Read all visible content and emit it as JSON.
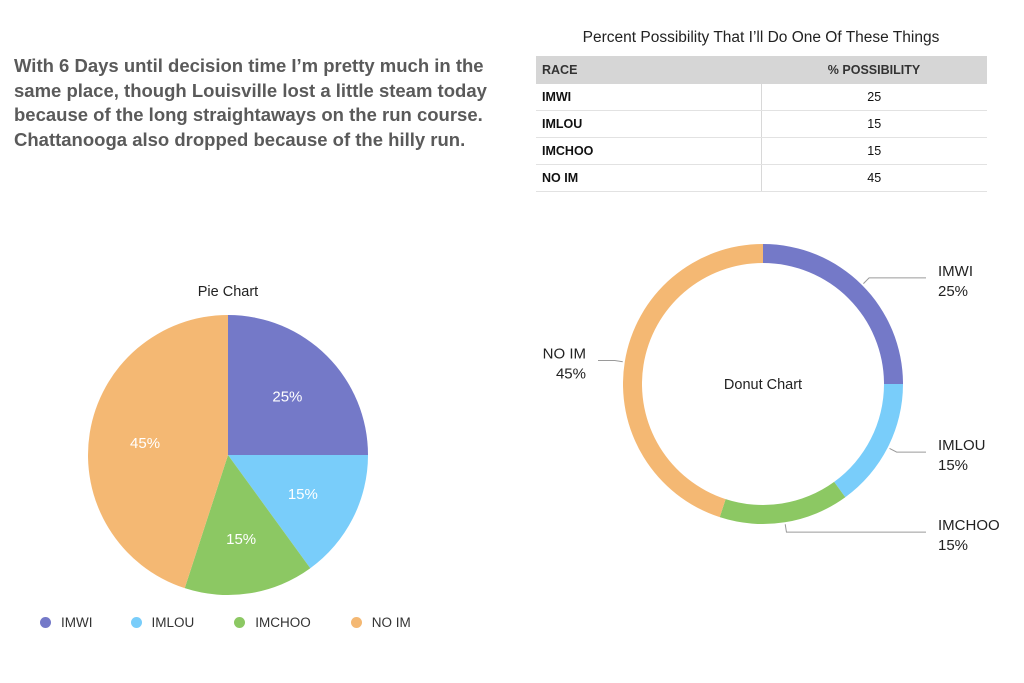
{
  "intro_text": "With 6 Days until decision time I’m pretty much in the same place, though Louisville lost a little steam today because of the long straightaways on the run course. Chattanooga also dropped because of the hilly run.",
  "table": {
    "title": "Percent Possibility That I’ll Do One Of These Things",
    "headers": [
      "RACE",
      "% POSSIBILITY"
    ],
    "rows": [
      {
        "race": "IMWI",
        "value": "25"
      },
      {
        "race": "IMLOU",
        "value": "15"
      },
      {
        "race": "IMCHOO",
        "value": "15"
      },
      {
        "race": "NO IM",
        "value": "45"
      }
    ]
  },
  "colors": {
    "IMWI": "#7479c8",
    "IMLOU": "#79cdfa",
    "IMCHOO": "#8cc863",
    "NO IM": "#f4b873"
  },
  "chart_data": [
    {
      "type": "pie",
      "title": "Pie Chart",
      "categories": [
        "IMWI",
        "IMLOU",
        "IMCHOO",
        "NO IM"
      ],
      "values": [
        25,
        15,
        15,
        45
      ],
      "data_labels": [
        "25%",
        "15%",
        "15%",
        "45%"
      ],
      "legend": [
        "IMWI",
        "IMLOU",
        "IMCHOO",
        "NO IM"
      ],
      "legend_position": "bottom"
    },
    {
      "type": "donut",
      "title": "Donut Chart",
      "categories": [
        "IMWI",
        "IMLOU",
        "IMCHOO",
        "NO IM"
      ],
      "values": [
        25,
        15,
        15,
        45
      ],
      "data_labels": [
        "25%",
        "15%",
        "15%",
        "45%"
      ]
    }
  ]
}
